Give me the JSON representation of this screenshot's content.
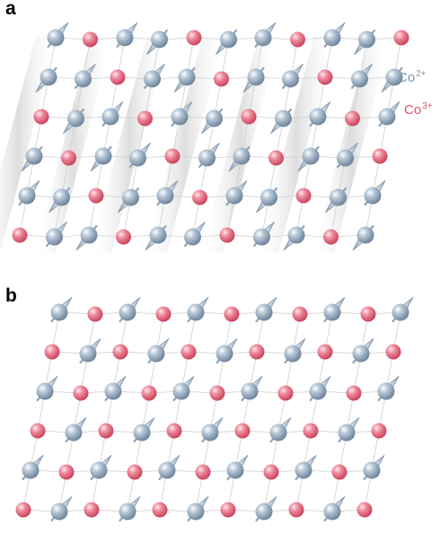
{
  "panels": [
    {
      "label": "a"
    },
    {
      "label": "b"
    }
  ],
  "legend": [
    {
      "base": "Co",
      "charge": "2+",
      "color": "#7f95ab"
    },
    {
      "base": "Co",
      "charge": "3+",
      "color": "#e0536a"
    }
  ],
  "diagram": {
    "type": "spin-lattice",
    "rows_per_panel": 6,
    "cols_per_panel": 11,
    "panel_a_stripes": true,
    "colors": {
      "co2_ion": "#9fb3c6",
      "co3_ion": "#e8748a",
      "spin_arrow": "#b8c7d6",
      "lattice_line": "#cfcfcf"
    }
  }
}
